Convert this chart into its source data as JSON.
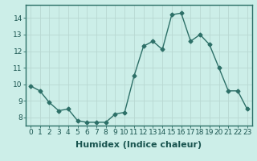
{
  "x": [
    0,
    1,
    2,
    3,
    4,
    5,
    6,
    7,
    8,
    9,
    10,
    11,
    12,
    13,
    14,
    15,
    16,
    17,
    18,
    19,
    20,
    21,
    22,
    23
  ],
  "y": [
    9.9,
    9.6,
    8.9,
    8.4,
    8.5,
    7.8,
    7.7,
    7.7,
    7.7,
    8.2,
    8.3,
    10.5,
    12.3,
    12.6,
    12.1,
    14.2,
    14.3,
    12.6,
    13.0,
    12.4,
    11.0,
    9.6,
    9.6,
    8.5
  ],
  "line_color": "#2d7068",
  "marker": "D",
  "marker_size": 2.5,
  "bg_color": "#cceee8",
  "grid_color": "#b8d8d2",
  "xlabel": "Humidex (Indice chaleur)",
  "ylim": [
    7.5,
    14.8
  ],
  "xlim": [
    -0.5,
    23.5
  ],
  "yticks": [
    8,
    9,
    10,
    11,
    12,
    13,
    14
  ],
  "xticks": [
    0,
    1,
    2,
    3,
    4,
    5,
    6,
    7,
    8,
    9,
    10,
    11,
    12,
    13,
    14,
    15,
    16,
    17,
    18,
    19,
    20,
    21,
    22,
    23
  ],
  "tick_label_fontsize": 6.5,
  "xlabel_fontsize": 8,
  "line_width": 1.0
}
